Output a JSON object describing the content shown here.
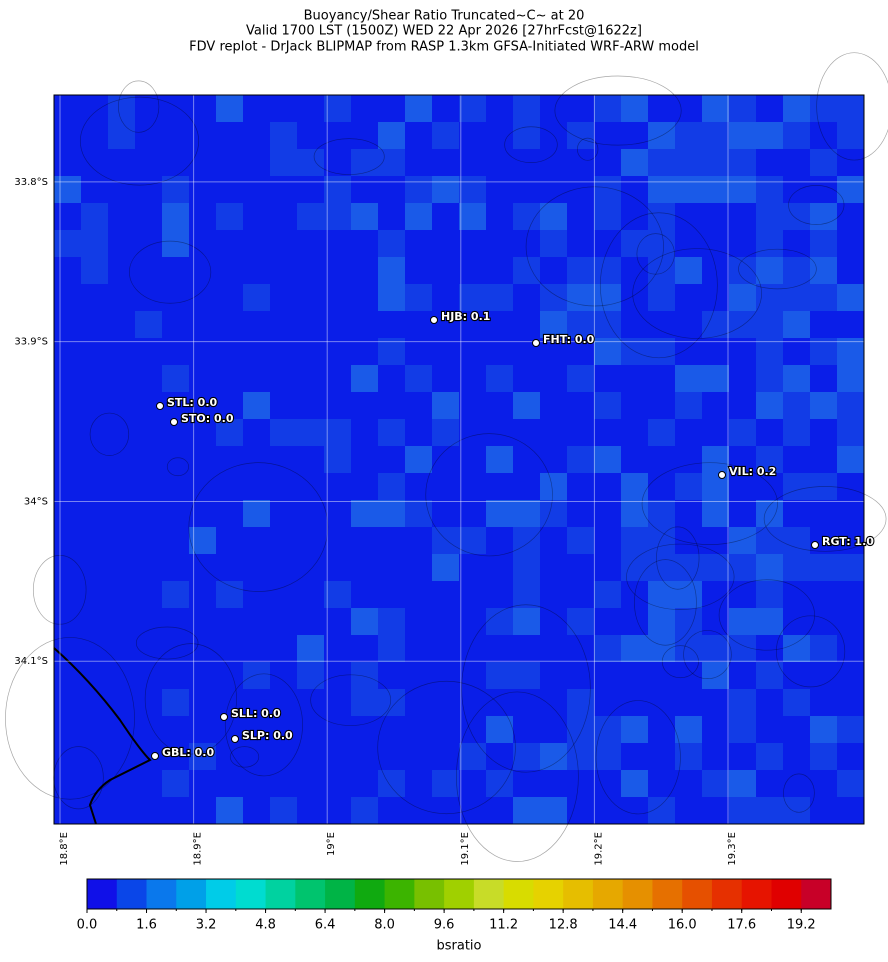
{
  "chart_data": {
    "type": "map",
    "title": [
      "Buoyancy/Shear Ratio Truncated~C~    at 20",
      "Valid 1700 LST (1500Z) WED 22 Apr 2026 [27hrFcst@1622z]",
      "FDV replot - DrJack BLIPMAP from RASP 1.3km GFSA-Initiated WRF-ARW model"
    ],
    "xlim": [
      18.7955,
      19.4018
    ],
    "ylim": [
      -34.2019,
      -33.7456
    ],
    "xticks": [
      {
        "value": 18.8,
        "label": "18.8°E"
      },
      {
        "value": 18.9,
        "label": "18.9°E"
      },
      {
        "value": 19.0,
        "label": "19°E"
      },
      {
        "value": 19.1,
        "label": "19.1°E"
      },
      {
        "value": 19.2,
        "label": "19.2°E"
      },
      {
        "value": 19.3,
        "label": "19.3°E"
      }
    ],
    "yticks": [
      {
        "value": -33.8,
        "label": "33.8°S"
      },
      {
        "value": -33.9,
        "label": "33.9°S"
      },
      {
        "value": -34.0,
        "label": "34°S"
      },
      {
        "value": -34.1,
        "label": "34.1°S"
      }
    ],
    "grid": true,
    "stations": [
      "HJB: 0.1",
      "FHT: 0.0",
      "STL: 0.0",
      "STO: 0.0",
      "VIL: 0.2",
      "RGT: 1.0",
      "SLL: 0.0",
      "SLP: 0.0",
      "GBL: 0.0"
    ],
    "colorbar": {
      "label": "bsratio",
      "lim": [
        0,
        20
      ],
      "colors": [
        "#1010e8",
        "#0a46e8",
        "#0a78ec",
        "#00a0e8",
        "#00cce8",
        "#00dcd0",
        "#00d2a0",
        "#00c46e",
        "#00b446",
        "#10aa10",
        "#3cb400",
        "#78c000",
        "#a0d000",
        "#c8dc28",
        "#d8dc00",
        "#e6d200",
        "#e6be00",
        "#e6a800",
        "#e69000",
        "#e67000",
        "#e65000",
        "#e63000",
        "#e61400",
        "#e00000",
        "#c80028"
      ],
      "ticks": [
        {
          "value": 0,
          "label": "0.0"
        },
        {
          "value": 1.6,
          "label": "1.6"
        },
        {
          "value": 3.2,
          "label": "3.2"
        },
        {
          "value": 4.8,
          "label": "4.8"
        },
        {
          "value": 6.4,
          "label": "6.4"
        },
        {
          "value": 8,
          "label": "8.0"
        },
        {
          "value": 9.6,
          "label": "9.6"
        },
        {
          "value": 11.2,
          "label": "11.2"
        },
        {
          "value": 12.8,
          "label": "12.8"
        },
        {
          "value": 14.4,
          "label": "14.4"
        },
        {
          "value": 16,
          "label": "16.0"
        },
        {
          "value": 17.6,
          "label": "17.6"
        },
        {
          "value": 19.2,
          "label": "19.2"
        }
      ]
    }
  }
}
